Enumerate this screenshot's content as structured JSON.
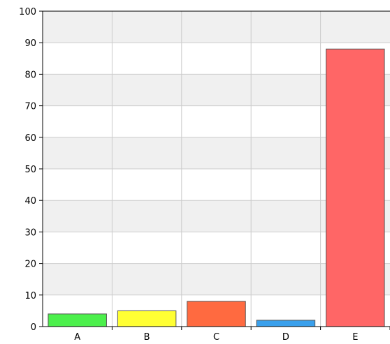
{
  "chart_data": {
    "type": "bar",
    "categories": [
      "A",
      "B",
      "C",
      "D",
      "E"
    ],
    "values": [
      4,
      5,
      8,
      2,
      88
    ],
    "colors": [
      "#4cf04c",
      "#ffff33",
      "#ff6a40",
      "#3aa0ec",
      "#ff6666"
    ],
    "title": "",
    "xlabel": "",
    "ylabel": "",
    "ylim": [
      0,
      100
    ],
    "yticks": [
      "0",
      "10",
      "20",
      "30",
      "40",
      "50",
      "60",
      "70",
      "80",
      "90",
      "100"
    ],
    "grid": true,
    "band_color": "#f0f0f0",
    "grid_color": "#cccccc"
  }
}
